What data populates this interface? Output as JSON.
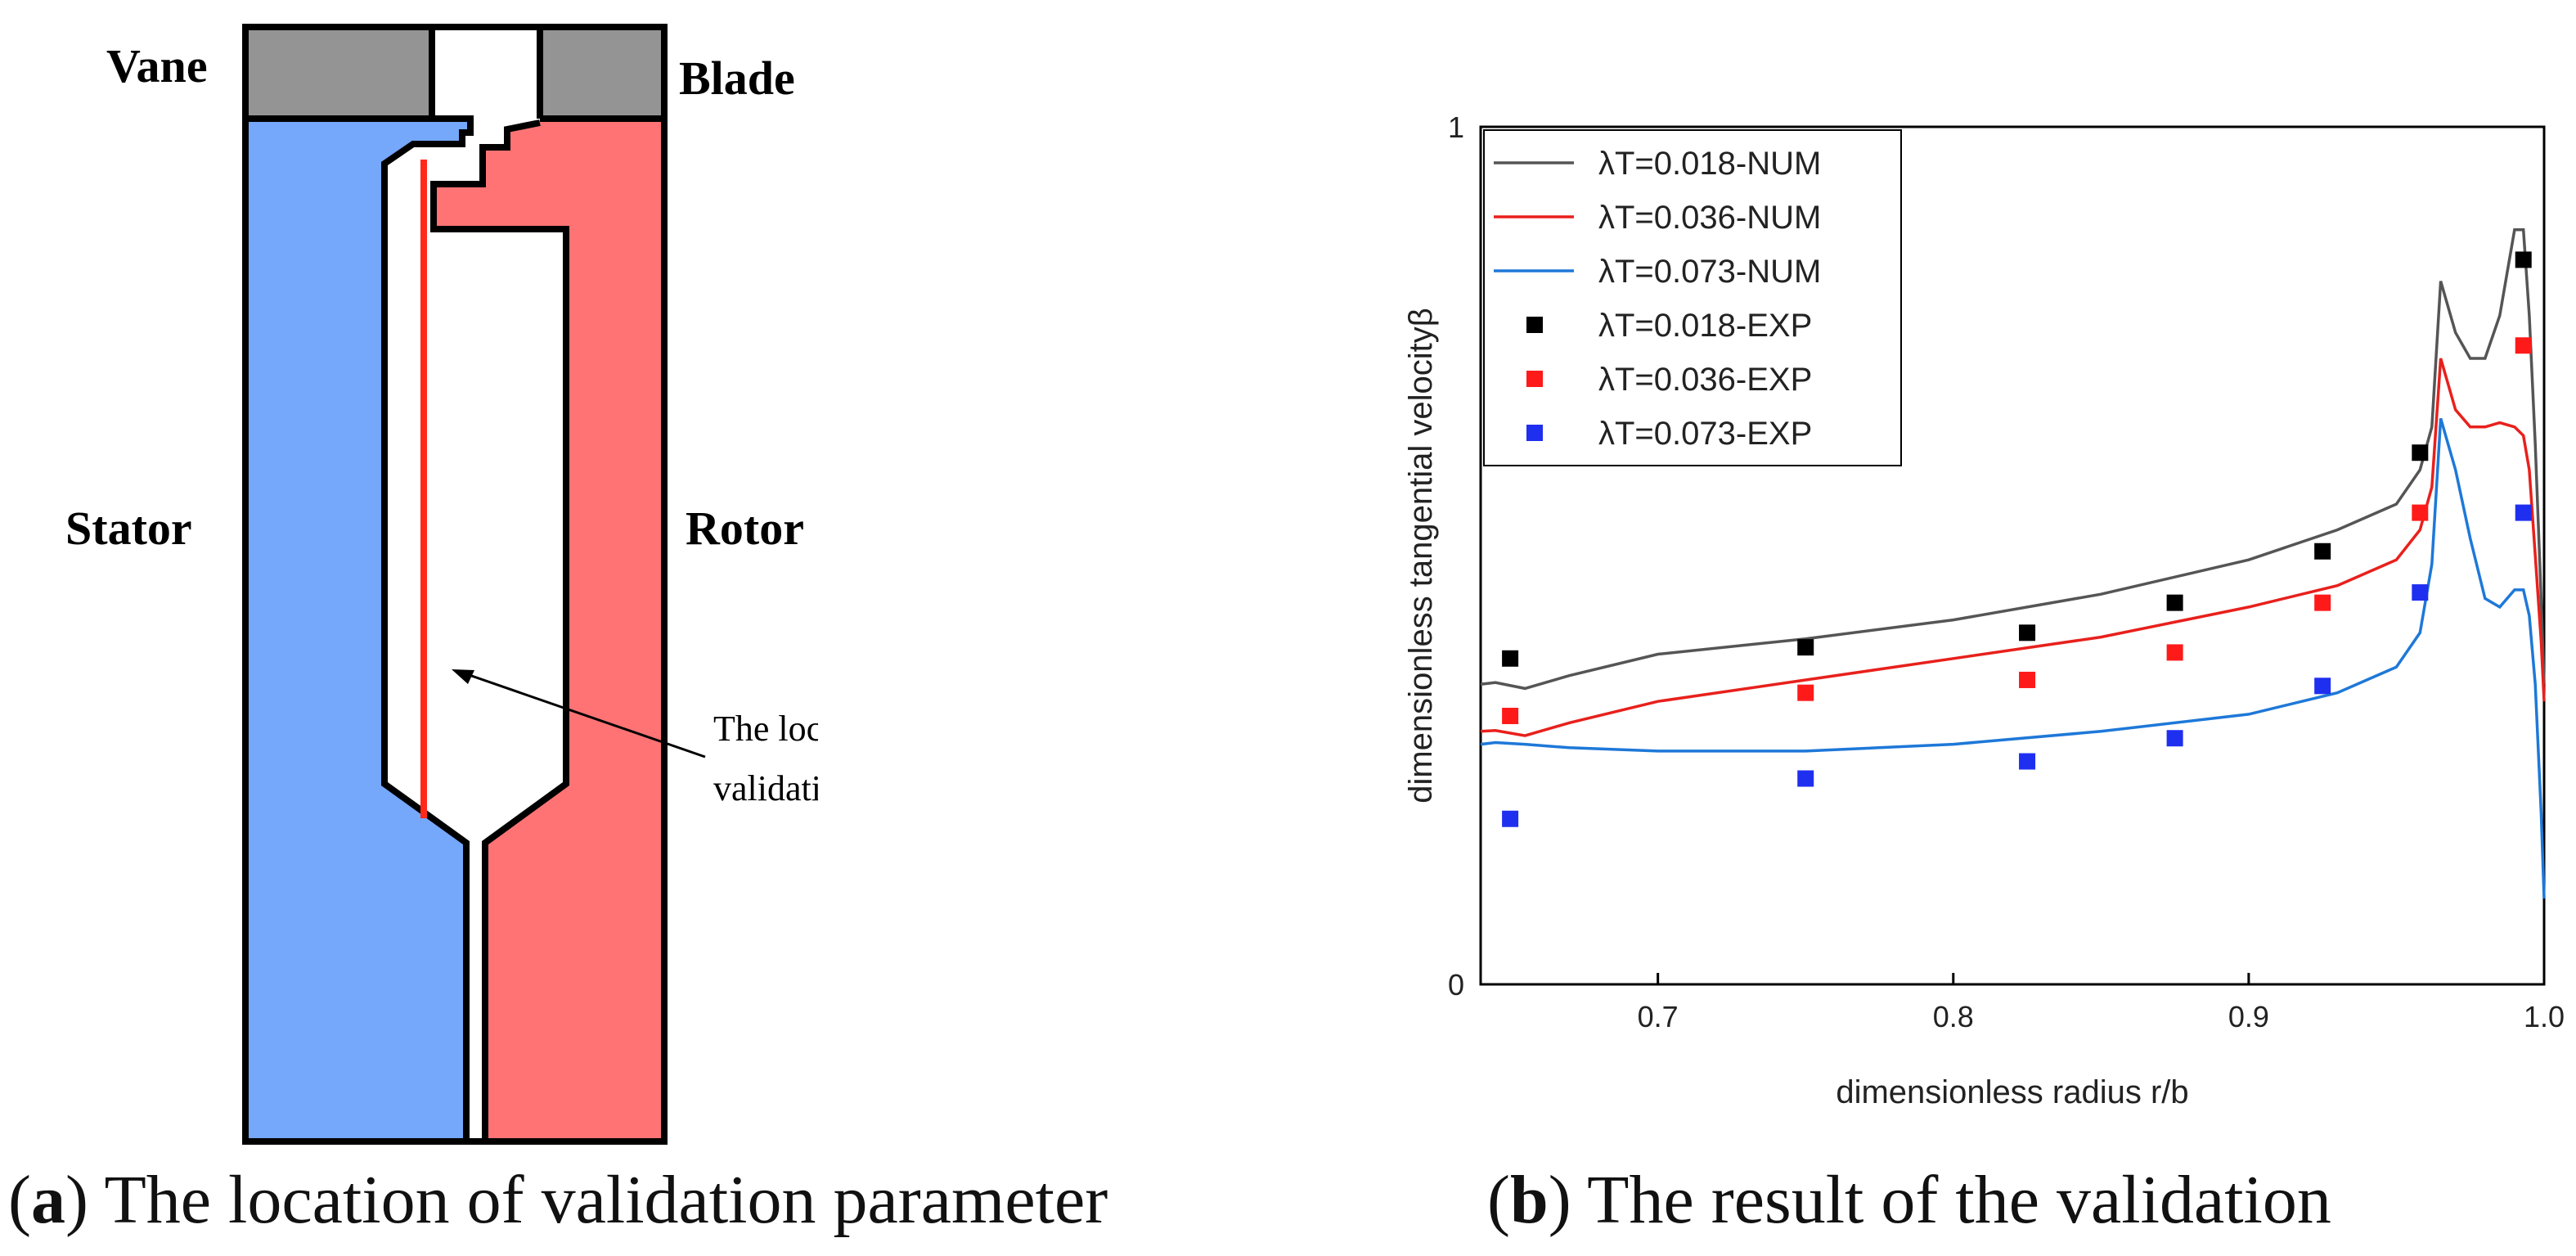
{
  "panel_a": {
    "labels": {
      "vane": "Vane",
      "blade": "Blade",
      "stator": "Stator",
      "rotor": "Rotor",
      "annotation_line1": "The location of",
      "annotation_line2": "validation parameter"
    },
    "colors": {
      "stator": "#75a7fb",
      "rotor": "#ff7374",
      "cap": "#949494",
      "probe": "#ff2a1a",
      "outline": "#000000"
    },
    "caption": {
      "tag": "a",
      "text": "The location of validation parameter"
    }
  },
  "panel_b": {
    "caption": {
      "tag": "b",
      "text": "The result of the validation"
    }
  },
  "chart_data": {
    "type": "line",
    "xlabel": "dimensionless radius r/b",
    "ylabel": "dimensionless tangential velocityβ",
    "xlim": [
      0.64,
      1.0
    ],
    "ylim": [
      0,
      1
    ],
    "xticks": [
      0.7,
      0.8,
      0.9,
      1.0
    ],
    "xtick_labels": [
      "0.7",
      "0.8",
      "0.9",
      "1.0"
    ],
    "yticks": [
      0,
      1
    ],
    "ytick_labels": [
      "0",
      "1"
    ],
    "legend_position": "top-left",
    "series": [
      {
        "name": "λT=0.018-NUM",
        "kind": "line",
        "color": "#555555",
        "x": [
          0.64,
          0.645,
          0.655,
          0.67,
          0.7,
          0.75,
          0.8,
          0.85,
          0.9,
          0.93,
          0.95,
          0.958,
          0.962,
          0.965,
          0.97,
          0.975,
          0.98,
          0.985,
          0.99,
          0.993,
          0.995,
          0.997,
          0.999,
          1.0
        ],
        "y": [
          0.35,
          0.352,
          0.345,
          0.36,
          0.385,
          0.403,
          0.425,
          0.455,
          0.495,
          0.53,
          0.56,
          0.6,
          0.65,
          0.82,
          0.76,
          0.73,
          0.73,
          0.78,
          0.88,
          0.88,
          0.78,
          0.63,
          0.45,
          0.35
        ]
      },
      {
        "name": "λT=0.036-NUM",
        "kind": "line",
        "color": "#e8201c",
        "x": [
          0.64,
          0.645,
          0.655,
          0.67,
          0.7,
          0.75,
          0.8,
          0.85,
          0.9,
          0.93,
          0.95,
          0.958,
          0.962,
          0.965,
          0.97,
          0.975,
          0.98,
          0.985,
          0.99,
          0.993,
          0.995,
          0.997,
          0.999,
          1.0
        ],
        "y": [
          0.295,
          0.296,
          0.29,
          0.305,
          0.33,
          0.355,
          0.38,
          0.405,
          0.44,
          0.465,
          0.495,
          0.53,
          0.58,
          0.73,
          0.67,
          0.65,
          0.65,
          0.655,
          0.65,
          0.64,
          0.6,
          0.5,
          0.4,
          0.33
        ]
      },
      {
        "name": "λT=0.073-NUM",
        "kind": "line",
        "color": "#1e78d8",
        "x": [
          0.64,
          0.645,
          0.655,
          0.67,
          0.7,
          0.75,
          0.8,
          0.85,
          0.9,
          0.93,
          0.95,
          0.958,
          0.962,
          0.965,
          0.97,
          0.975,
          0.98,
          0.985,
          0.99,
          0.993,
          0.995,
          0.997,
          0.999,
          1.0
        ],
        "y": [
          0.28,
          0.282,
          0.28,
          0.276,
          0.272,
          0.272,
          0.28,
          0.295,
          0.315,
          0.34,
          0.37,
          0.41,
          0.49,
          0.66,
          0.6,
          0.52,
          0.45,
          0.44,
          0.46,
          0.46,
          0.43,
          0.35,
          0.2,
          0.1
        ]
      },
      {
        "name": "λT=0.018-EXP",
        "kind": "scatter",
        "color": "#000000",
        "x": [
          0.65,
          0.75,
          0.825,
          0.875,
          0.925,
          0.958,
          0.993
        ],
        "y": [
          0.38,
          0.393,
          0.41,
          0.445,
          0.505,
          0.62,
          0.845
        ]
      },
      {
        "name": "λT=0.036-EXP",
        "kind": "scatter",
        "color": "#ff1a1a",
        "x": [
          0.65,
          0.75,
          0.825,
          0.875,
          0.925,
          0.958,
          0.993
        ],
        "y": [
          0.313,
          0.34,
          0.355,
          0.387,
          0.445,
          0.55,
          0.745
        ]
      },
      {
        "name": "λT=0.073-EXP",
        "kind": "scatter",
        "color": "#1f2ff0",
        "x": [
          0.65,
          0.75,
          0.825,
          0.875,
          0.925,
          0.958,
          0.993
        ],
        "y": [
          0.193,
          0.24,
          0.26,
          0.287,
          0.348,
          0.457,
          0.55
        ]
      }
    ]
  }
}
